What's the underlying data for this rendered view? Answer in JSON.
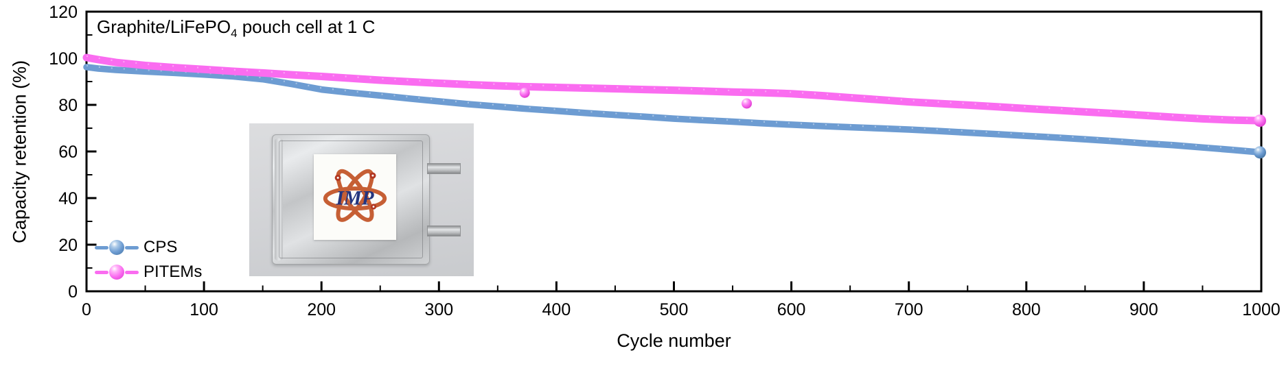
{
  "chart_data": {
    "type": "scatter",
    "title": "Graphite/LiFePO4 pouch cell at 1 C",
    "title_parts": {
      "prefix": "Graphite/LiFePO",
      "sub": "4",
      "suffix": " pouch cell at 1 C"
    },
    "xlabel": "Cycle number",
    "ylabel": "Capacity retention (%)",
    "xlim": [
      0,
      1000
    ],
    "ylim": [
      0,
      120
    ],
    "x_major_step": 100,
    "x_minor_step": 50,
    "y_major_step": 20,
    "y_minor_step": 10,
    "x_tick_labels": [
      "0",
      "100",
      "200",
      "300",
      "400",
      "500",
      "600",
      "700",
      "800",
      "900",
      "1000"
    ],
    "y_tick_labels": [
      "0",
      "20",
      "40",
      "60",
      "80",
      "100",
      "120"
    ],
    "grid": false,
    "legend_position": "lower-left",
    "axis_color": "#000000",
    "series": [
      {
        "name": "CPS",
        "color": "#6d9cd2",
        "color_light": "#aecbe8",
        "color_dark": "#41719f",
        "points": [
          [
            0,
            96.2
          ],
          [
            10,
            95.6
          ],
          [
            25,
            95.0
          ],
          [
            50,
            94.3
          ],
          [
            75,
            93.7
          ],
          [
            100,
            93.0
          ],
          [
            125,
            92.2
          ],
          [
            150,
            91.0
          ],
          [
            175,
            88.9
          ],
          [
            200,
            86.6
          ],
          [
            225,
            85.2
          ],
          [
            250,
            84.0
          ],
          [
            275,
            82.7
          ],
          [
            300,
            81.5
          ],
          [
            325,
            80.3
          ],
          [
            350,
            79.3
          ],
          [
            375,
            78.3
          ],
          [
            400,
            77.4
          ],
          [
            425,
            76.5
          ],
          [
            450,
            75.7
          ],
          [
            475,
            74.9
          ],
          [
            500,
            74.1
          ],
          [
            525,
            73.4
          ],
          [
            550,
            72.8
          ],
          [
            575,
            72.1
          ],
          [
            600,
            71.5
          ],
          [
            625,
            70.9
          ],
          [
            650,
            70.4
          ],
          [
            675,
            69.9
          ],
          [
            700,
            69.4
          ],
          [
            725,
            68.8
          ],
          [
            750,
            68.1
          ],
          [
            775,
            67.4
          ],
          [
            800,
            66.7
          ],
          [
            825,
            66.0
          ],
          [
            850,
            65.2
          ],
          [
            875,
            64.4
          ],
          [
            900,
            63.5
          ],
          [
            925,
            62.7
          ],
          [
            950,
            61.7
          ],
          [
            975,
            60.7
          ],
          [
            1000,
            59.6
          ]
        ],
        "outliers": []
      },
      {
        "name": "PITEMs",
        "color": "#fa6cf0",
        "color_light": "#ffb2f8",
        "color_dark": "#d935c9",
        "points": [
          [
            0,
            100.3
          ],
          [
            10,
            99.4
          ],
          [
            25,
            98.2
          ],
          [
            50,
            96.9
          ],
          [
            75,
            96.0
          ],
          [
            100,
            95.2
          ],
          [
            125,
            94.4
          ],
          [
            150,
            93.7
          ],
          [
            175,
            92.9
          ],
          [
            200,
            92.2
          ],
          [
            225,
            91.4
          ],
          [
            250,
            90.6
          ],
          [
            275,
            89.9
          ],
          [
            300,
            89.3
          ],
          [
            325,
            88.7
          ],
          [
            350,
            88.2
          ],
          [
            375,
            87.8
          ],
          [
            400,
            87.5
          ],
          [
            425,
            87.2
          ],
          [
            450,
            86.9
          ],
          [
            475,
            86.6
          ],
          [
            500,
            86.3
          ],
          [
            525,
            85.9
          ],
          [
            550,
            85.5
          ],
          [
            575,
            85.2
          ],
          [
            600,
            84.8
          ],
          [
            625,
            84.0
          ],
          [
            650,
            83.1
          ],
          [
            675,
            82.2
          ],
          [
            700,
            81.3
          ],
          [
            725,
            80.6
          ],
          [
            750,
            79.9
          ],
          [
            775,
            79.2
          ],
          [
            800,
            78.4
          ],
          [
            825,
            77.7
          ],
          [
            850,
            77.0
          ],
          [
            875,
            76.3
          ],
          [
            900,
            75.5
          ],
          [
            925,
            74.7
          ],
          [
            950,
            74.0
          ],
          [
            975,
            73.5
          ],
          [
            1000,
            73.2
          ]
        ],
        "outliers": [
          [
            373,
            85.2
          ],
          [
            562,
            80.6
          ]
        ]
      }
    ]
  },
  "inset": {
    "logo_text": "IMP"
  }
}
